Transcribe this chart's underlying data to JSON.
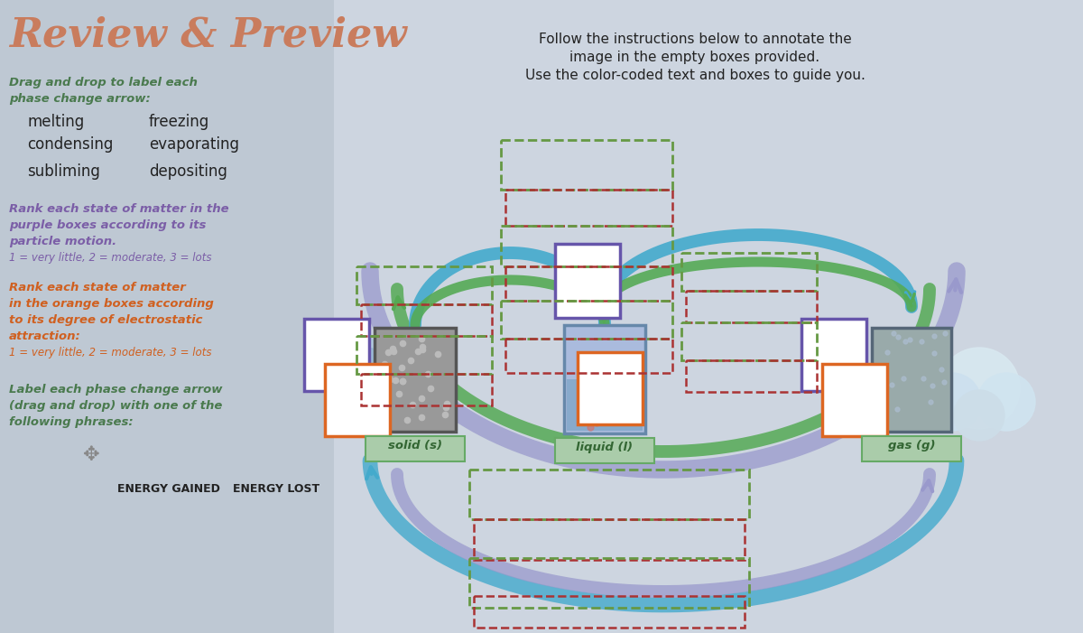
{
  "bg_color": "#cdd5e0",
  "left_panel_bg": "#bec8d3",
  "title": "Review & Preview",
  "title_color": "#c97c5d",
  "text_green": "#4a7a4e",
  "text_dark": "#222222",
  "text_purple": "#7b5ea7",
  "text_orange": "#d06020",
  "purple_box": "#6655aa",
  "orange_box": "#dd6622",
  "state_label_bg": "#aaccaa",
  "state_label_border": "#66aa66",
  "state_label_text": "#336633",
  "arrow_purple_top": "#9999cc",
  "arrow_green_top": "#55aa55",
  "arrow_teal_mid": "#44aacc",
  "arrow_green_mid": "#55aa55",
  "arrow_teal_bot": "#44aacc",
  "arrow_purple_bot": "#9999cc",
  "dash_green": "#669944",
  "dash_red": "#aa3333",
  "solid_label": "solid (s)",
  "liquid_label": "liquid (l)",
  "gas_label": "gas (g)",
  "energy_gained": "ENERGY GAINED",
  "energy_lost": "ENERGY LOST"
}
